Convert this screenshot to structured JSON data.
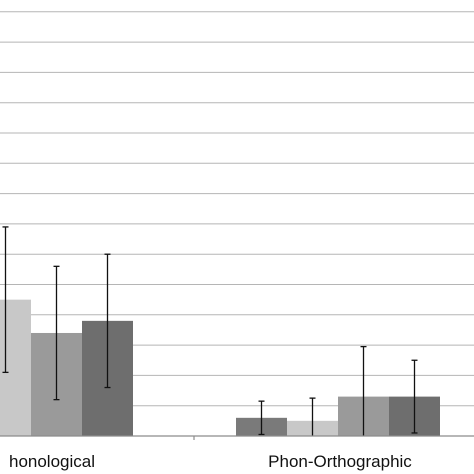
{
  "chart_data": {
    "type": "bar",
    "categories": [
      "honological",
      "Phon-Orthographic"
    ],
    "series": [
      {
        "values": [
          null,
          0.6
        ],
        "errors": [
          null,
          0.55
        ],
        "color": "#7a7a7a"
      },
      {
        "values": [
          4.5,
          0.5
        ],
        "errors": [
          2.4,
          0.75
        ],
        "color": "#c8c8c8"
      },
      {
        "values": [
          3.4,
          1.3
        ],
        "errors": [
          2.2,
          1.65
        ],
        "color": "#9a9a9a"
      },
      {
        "values": [
          3.8,
          1.3
        ],
        "errors": [
          2.2,
          1.2
        ],
        "color": "#6e6e6e"
      }
    ],
    "ylim": [
      0,
      14
    ],
    "grid": true,
    "gridline_color": "#b5b5b5",
    "axis_color": "#8c8c8c"
  }
}
